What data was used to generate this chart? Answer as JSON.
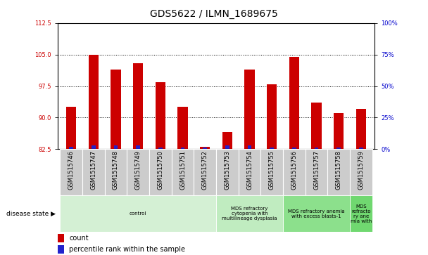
{
  "title": "GDS5622 / ILMN_1689675",
  "samples": [
    "GSM1515746",
    "GSM1515747",
    "GSM1515748",
    "GSM1515749",
    "GSM1515750",
    "GSM1515751",
    "GSM1515752",
    "GSM1515753",
    "GSM1515754",
    "GSM1515755",
    "GSM1515756",
    "GSM1515757",
    "GSM1515758",
    "GSM1515759"
  ],
  "count_values": [
    92.5,
    105.0,
    101.5,
    103.0,
    98.5,
    92.5,
    83.0,
    86.5,
    101.5,
    98.0,
    104.5,
    93.5,
    91.0,
    92.0
  ],
  "percentile_values": [
    2.0,
    3.0,
    3.0,
    3.0,
    1.5,
    1.5,
    1.5,
    3.0,
    3.0,
    1.5,
    1.5,
    1.5,
    1.5,
    1.5
  ],
  "ylim_left": [
    82.5,
    112.5
  ],
  "ylim_right": [
    0,
    100
  ],
  "yticks_left": [
    82.5,
    90.0,
    97.5,
    105.0,
    112.5
  ],
  "yticks_right": [
    0,
    25,
    50,
    75,
    100
  ],
  "grid_values": [
    90.0,
    97.5,
    105.0
  ],
  "bar_color_red": "#cc0000",
  "bar_color_blue": "#2222cc",
  "red_bar_width": 0.45,
  "blue_bar_width": 0.18,
  "disease_groups": [
    {
      "label": "control",
      "start": 0,
      "end": 7,
      "color": "#d4f0d4"
    },
    {
      "label": "MDS refractory\ncytopenia with\nmultilineage dysplasia",
      "start": 7,
      "end": 10,
      "color": "#c0ecc0"
    },
    {
      "label": "MDS refractory anemia\nwith excess blasts-1",
      "start": 10,
      "end": 13,
      "color": "#8ce08c"
    },
    {
      "label": "MDS\nrefracto\nry ane\nmia with",
      "start": 13,
      "end": 14,
      "color": "#70d870"
    }
  ],
  "legend_items": [
    {
      "label": "count",
      "color": "#cc0000"
    },
    {
      "label": "percentile rank within the sample",
      "color": "#2222cc"
    }
  ],
  "disease_state_label": "disease state",
  "axis_label_color_left": "#cc0000",
  "axis_label_color_right": "#0000cc",
  "background_color": "#ffffff",
  "tick_area_color": "#cccccc",
  "title_fontsize": 10,
  "tick_fontsize": 6,
  "disease_fontsize": 5,
  "legend_fontsize": 7
}
